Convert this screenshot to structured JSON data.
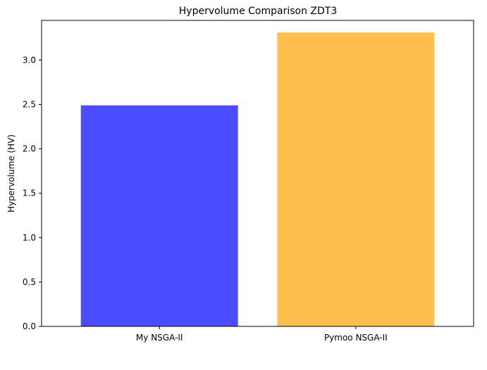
{
  "chart_data": {
    "type": "bar",
    "title": "Hypervolume Comparison ZDT3",
    "xlabel": "",
    "ylabel": "Hypervolume (HV)",
    "categories": [
      "My NSGA-II",
      "Pymoo NSGA-II"
    ],
    "values": [
      2.49,
      3.31
    ],
    "colors": [
      "#4b4bff",
      "#ffbf4d"
    ],
    "ylim": [
      0,
      3.447
    ],
    "yticks": [
      0.0,
      0.5,
      1.0,
      1.5,
      2.0,
      2.5,
      3.0
    ],
    "ytick_labels": [
      "0.0",
      "0.5",
      "1.0",
      "1.5",
      "2.0",
      "2.5",
      "3.0"
    ],
    "grid": false,
    "legend": "none"
  }
}
